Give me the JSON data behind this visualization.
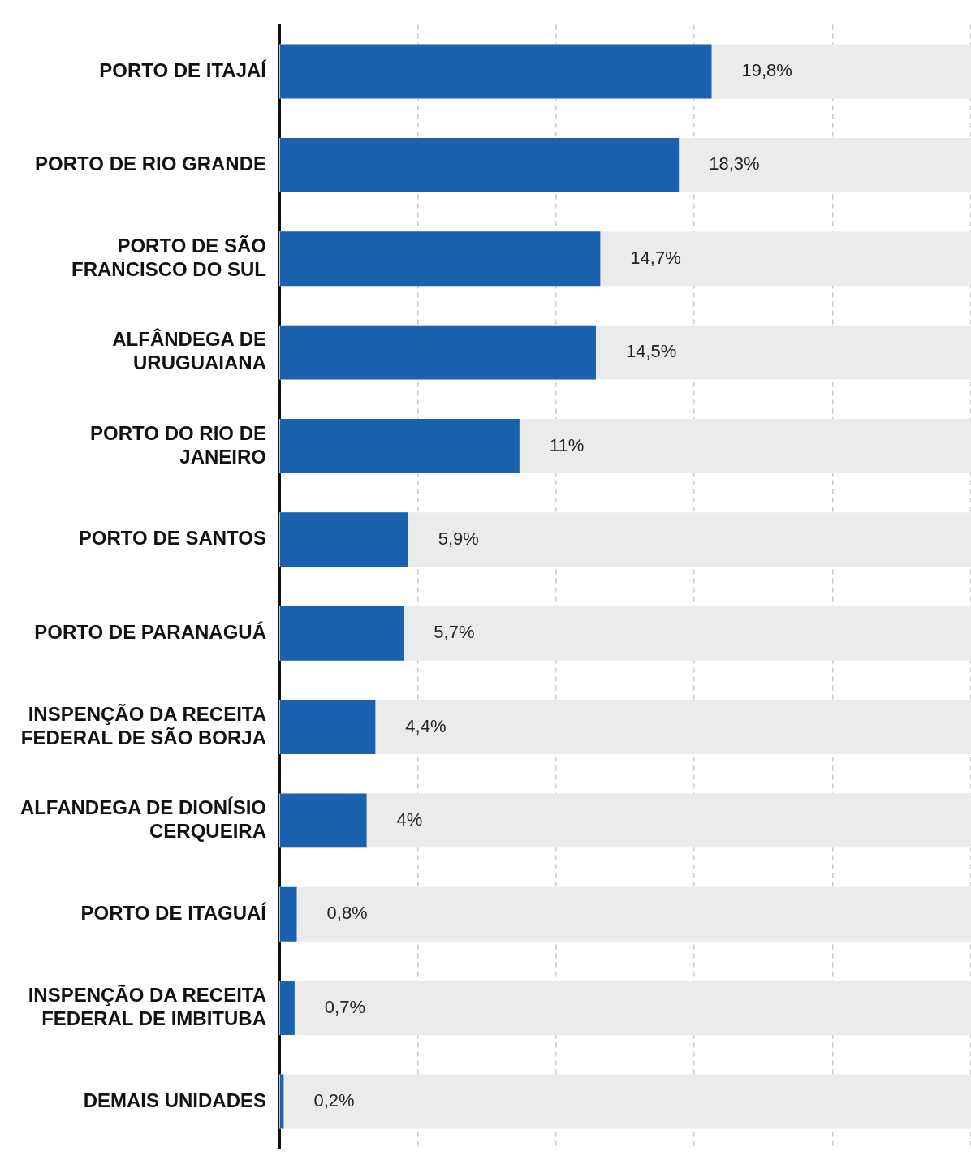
{
  "chart_data": {
    "type": "bar",
    "orientation": "horizontal",
    "categories": [
      "PORTO DE ITAJAÍ",
      "PORTO DE RIO GRANDE",
      "PORTO DE SÃO FRANCISCO DO SUL",
      "ALFÂNDEGA DE URUGUAIANA",
      "PORTO DO RIO DE JANEIRO",
      "PORTO DE SANTOS",
      "PORTO DE PARANAGUÁ",
      "INSPENÇÃO DA RECEITA FEDERAL DE SÃO BORJA",
      "ALFANDEGA DE DIONÍSIO CERQUEIRA",
      "PORTO DE ITAGUAÍ",
      "INSPENÇÃO DA RECEITA FEDERAL DE IMBITUBA",
      "DEMAIS UNIDADES"
    ],
    "values": [
      19.8,
      18.3,
      14.7,
      14.5,
      11,
      5.9,
      5.7,
      4.4,
      4,
      0.8,
      0.7,
      0.2
    ],
    "value_labels": [
      "19,8%",
      "18,3%",
      "14,7%",
      "14,5%",
      "11%",
      "5,9%",
      "5,7%",
      "4,4%",
      "4%",
      "0,8%",
      "0,7%",
      "0,2%"
    ],
    "color": "#1a62ae",
    "grid": "x",
    "legend": false
  }
}
